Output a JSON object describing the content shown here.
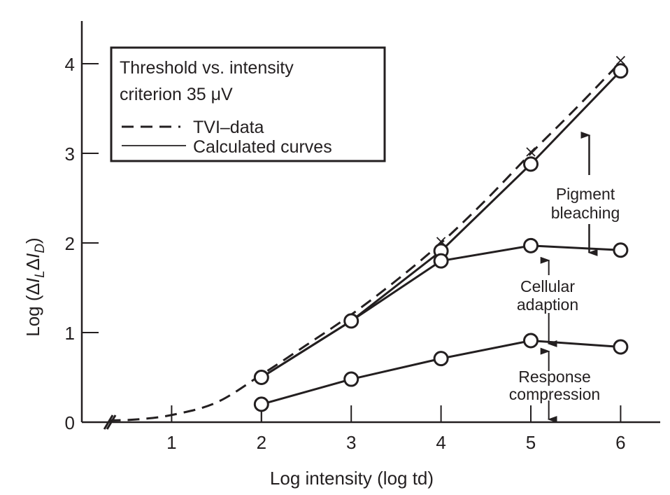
{
  "chart_data": {
    "type": "line",
    "title": "",
    "xlabel": "Log intensity (log td)",
    "ylabel_parts": {
      "prefix": "Log (",
      "delta1": "Δ",
      "I1": "I",
      "sub1": "L",
      "delta2": "Δ",
      "I2": "I",
      "sub2": "D",
      "suffix": ")"
    },
    "ylabel": "Log (ΔI_LΔI_D)",
    "xlim": [
      0,
      6.4
    ],
    "ylim": [
      0,
      4.4
    ],
    "x_ticks": [
      1,
      2,
      3,
      4,
      5,
      6
    ],
    "x_tick_labels": [
      "1",
      "2",
      "3",
      "4",
      "5",
      "6"
    ],
    "y_ticks": [
      0,
      1,
      2,
      3,
      4
    ],
    "y_tick_labels": [
      "0",
      "1",
      "2",
      "3",
      "4"
    ],
    "grid": false,
    "axis_break": true,
    "legend": {
      "placement": "top-left",
      "title_lines": [
        "Threshold vs. intensity",
        "criterion 35 μV"
      ],
      "entries": [
        {
          "label": "TVI–data",
          "style": "dashed"
        },
        {
          "label": "Calculated curves",
          "style": "solid"
        }
      ]
    },
    "series": [
      {
        "name": "TVI–data",
        "style": "dashed",
        "marker": "x",
        "x": [
          0.3,
          0.6,
          1.0,
          1.5,
          2.0,
          2.5,
          3.0,
          3.5,
          4.0,
          4.5,
          5.0,
          5.5,
          6.0
        ],
        "y": [
          0.02,
          0.03,
          0.08,
          0.22,
          0.53,
          0.86,
          1.2,
          1.58,
          2.0,
          2.48,
          3.0,
          3.5,
          4.02
        ],
        "marker_x": [
          4.0,
          5.0,
          6.0
        ],
        "marker_y": [
          2.0,
          3.0,
          4.02
        ]
      },
      {
        "name": "Calculated: pigment bleaching",
        "style": "solid",
        "marker": "circle",
        "x": [
          2,
          3,
          4,
          5,
          6
        ],
        "y": [
          0.5,
          1.13,
          1.91,
          2.88,
          3.92
        ]
      },
      {
        "name": "Calculated: cellular adaption",
        "style": "solid",
        "marker": "circle",
        "x": [
          2,
          3,
          4,
          5,
          6
        ],
        "y": [
          0.5,
          1.13,
          1.8,
          1.97,
          1.92
        ]
      },
      {
        "name": "Calculated: response compression",
        "style": "solid",
        "marker": "circle",
        "x": [
          2,
          3,
          4,
          5,
          6
        ],
        "y": [
          0.2,
          0.48,
          0.71,
          0.91,
          0.84
        ]
      }
    ],
    "annotations": [
      {
        "lines": [
          "Pigment",
          "bleaching"
        ],
        "arrow_x": 5.65,
        "arrow_from": 3.05,
        "arrow_to": 1.97
      },
      {
        "lines": [
          "Cellular",
          "adaption"
        ],
        "arrow_x": 5.2,
        "arrow_from": 1.9,
        "arrow_to": 0.93
      },
      {
        "lines": [
          "Response",
          "compression"
        ],
        "arrow_x": 5.2,
        "arrow_from": 0.87,
        "arrow_to": 0.0
      }
    ],
    "colors": {
      "ink": "#231f20",
      "background": "#ffffff"
    }
  }
}
